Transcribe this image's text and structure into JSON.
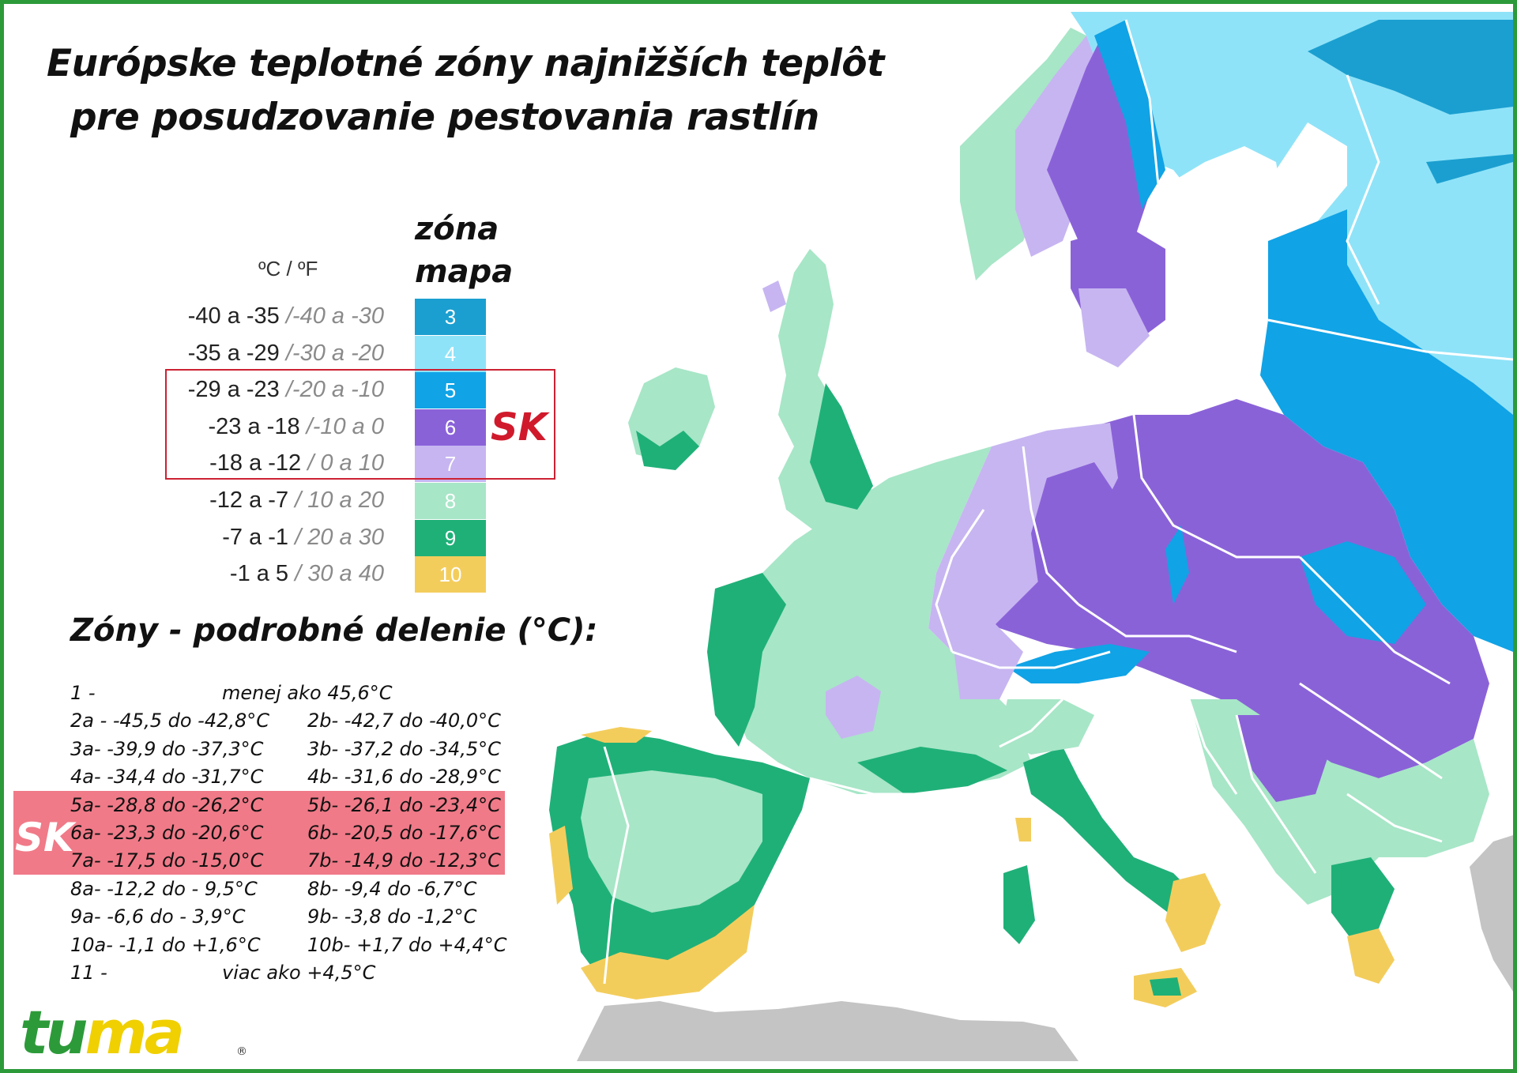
{
  "title": {
    "line1": "Európske teplotné zóny najnižších teplôt",
    "line2": "pre posudzovanie  pestovania rastlín"
  },
  "legend": {
    "header_zona": "zóna",
    "header_mapa": "mapa",
    "header_units": "ºC / ºF",
    "rows": [
      {
        "c": "-40 a -35 ",
        "f": "/-40 a -30",
        "zone": "3",
        "color": "#1b9fd0"
      },
      {
        "c": "-35 a -29 ",
        "f": "/-30 a -20",
        "zone": "4",
        "color": "#8fe3f8"
      },
      {
        "c": "-29 a -23 ",
        "f": "/-20 a -10",
        "zone": "5",
        "color": "#10a3e6"
      },
      {
        "c": "-23 a -18 ",
        "f": "/-10 a 0",
        "zone": "6",
        "color": "#8a62d8"
      },
      {
        "c": "-18 a -12 ",
        "f": "/ 0 a 10",
        "zone": "7",
        "color": "#c7b5f1"
      },
      {
        "c": "-12 a -7 ",
        "f": "/ 10 a 20",
        "zone": "8",
        "color": "#a7e6c7"
      },
      {
        "c": "-7 a -1 ",
        "f": "/ 20 a 30",
        "zone": "9",
        "color": "#1fb078"
      },
      {
        "c": "-1 a 5 ",
        "f": "/ 30 a 40",
        "zone": "10",
        "color": "#f3cd5c"
      }
    ],
    "sk_label": "SK"
  },
  "detail": {
    "title": "Zóny - podrobné delenie (°C):",
    "sk_label": "SK",
    "rows": [
      {
        "a": "1   -",
        "single": "menej ako 45,6°C"
      },
      {
        "a": "2a -  -45,5 do -42,8°C",
        "b": "2b-   -42,7 do -40,0°C"
      },
      {
        "a": "3a-   -39,9 do -37,3°C",
        "b": "3b-   -37,2 do -34,5°C"
      },
      {
        "a": "4a-   -34,4 do -31,7°C",
        "b": "4b-   -31,6 do -28,9°C"
      },
      {
        "a": "5a-   -28,8 do -26,2°C",
        "b": "5b-   -26,1 do -23,4°C"
      },
      {
        "a": "6a-   -23,3 do -20,6°C",
        "b": "6b-   -20,5 do -17,6°C"
      },
      {
        "a": "7a-   -17,5 do -15,0°C",
        "b": "7b-   -14,9 do -12,3°C"
      },
      {
        "a": "8a-   -12,2 do - 9,5°C",
        "b": "8b-    -9,4 do    -6,7°C"
      },
      {
        "a": "9a-    -6,6 do  - 3,9°C",
        "b": "9b-    -3,8 do    -1,2°C"
      },
      {
        "a": "10a-  -1,1 do  +1,6°C",
        "b": "10b-  +1,7 do  +4,4°C"
      },
      {
        "a": "11   -",
        "single": "viac ako +4,5°C"
      }
    ]
  },
  "logo": {
    "t": "t",
    "u": "u",
    "m": "m",
    "a": "a",
    "reg": "®"
  },
  "colors": {
    "zone3": "#1b9fd0",
    "zone4": "#8fe3f8",
    "zone5": "#10a3e6",
    "zone6": "#8a62d8",
    "zone7": "#c7b5f1",
    "zone8": "#a7e6c7",
    "zone9": "#1fb078",
    "zone10": "#f3cd5c",
    "africa": "#c4c4c4",
    "frame": "#2d9a3a",
    "sk_red": "#d01a2c",
    "sk_band": "#f07a88"
  }
}
